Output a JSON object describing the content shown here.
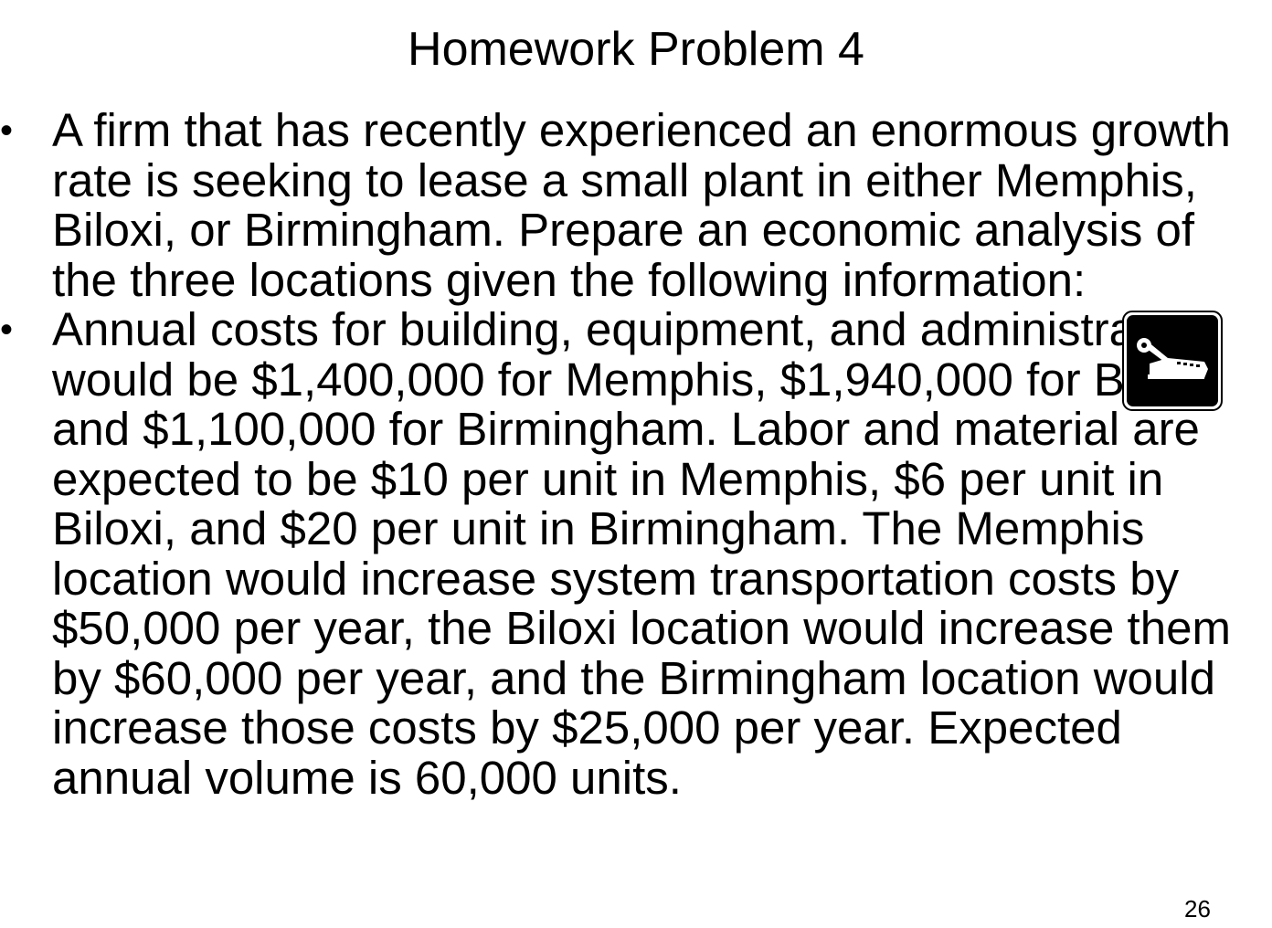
{
  "slide": {
    "title": "Homework Problem 4",
    "bullets": [
      {
        "marker": "•",
        "text": "A firm that has recently experienced an enormous growth rate is seeking to lease a small plant in either Memphis, Biloxi, or Birmingham.  Prepare an economic analysis of the three locations given the following information:"
      },
      {
        "marker": "•",
        "text": "Annual costs for building, equipment, and administration would be $1,400,000 for Memphis, $1,940,000 for Biloxi, and $1,100,000 for Birmingham. Labor and material are expected to be $10 per unit in Memphis, $6 per unit in Biloxi, and $20 per unit in Birmingham. The Memphis location would increase system transportation costs by $50,000 per year, the Biloxi location would increase them by $60,000 per year, and the Birmingham location would increase those costs by $25,000 per year. Expected annual volume is 60,000 units."
      }
    ],
    "icon": "calculator-icon",
    "page_number": "26"
  }
}
